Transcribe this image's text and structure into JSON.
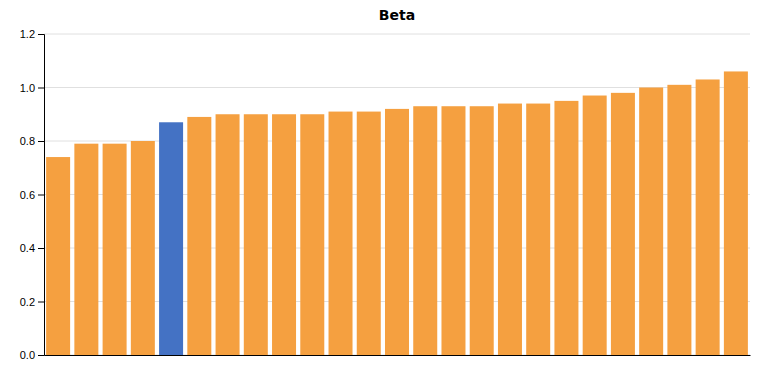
{
  "chart_data": {
    "type": "bar",
    "title": "Beta",
    "categories": [
      null,
      null,
      null,
      null,
      null,
      null,
      null,
      null,
      null,
      null,
      null,
      null,
      null,
      null,
      null,
      null,
      null,
      null,
      null,
      null,
      null,
      null,
      null,
      null,
      null
    ],
    "values": [
      0.74,
      0.79,
      0.79,
      0.8,
      0.87,
      0.89,
      0.9,
      0.9,
      0.9,
      0.9,
      0.91,
      0.91,
      0.92,
      0.93,
      0.93,
      0.93,
      0.94,
      0.94,
      0.95,
      0.97,
      0.98,
      1.0,
      1.01,
      1.03,
      1.06
    ],
    "colors": [
      "#F5A040",
      "#F5A040",
      "#F5A040",
      "#F5A040",
      "#4472C4",
      "#F5A040",
      "#F5A040",
      "#F5A040",
      "#F5A040",
      "#F5A040",
      "#F5A040",
      "#F5A040",
      "#F5A040",
      "#F5A040",
      "#F5A040",
      "#F5A040",
      "#F5A040",
      "#F5A040",
      "#F5A040",
      "#F5A040",
      "#F5A040",
      "#F5A040",
      "#F5A040",
      "#F5A040",
      "#F5A040"
    ],
    "ylim": [
      0,
      1.2
    ],
    "yticks": [
      {
        "value": 0,
        "label": "0.0"
      },
      0.2,
      0.4,
      0.6,
      0.8,
      {
        "value": 1.0,
        "label": "1.0"
      },
      1.2
    ],
    "grid": true,
    "tick_labels": "y"
  }
}
